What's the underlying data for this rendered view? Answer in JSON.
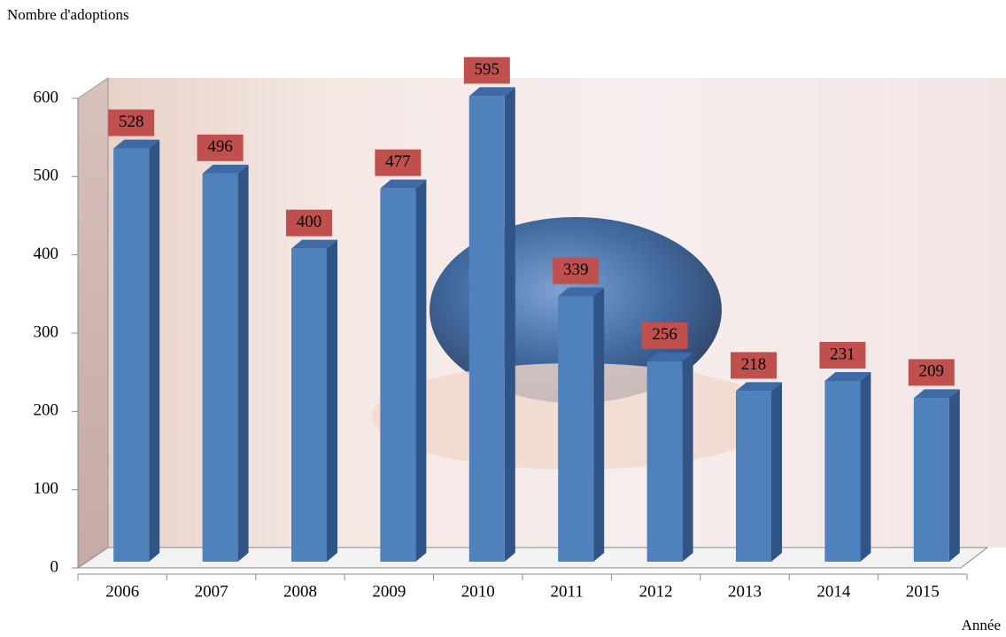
{
  "chart_data": {
    "type": "bar",
    "y_label": "Nombre d'adoptions",
    "x_label": "Année",
    "categories": [
      "2006",
      "2007",
      "2008",
      "2009",
      "2010",
      "2011",
      "2012",
      "2013",
      "2014",
      "2015"
    ],
    "values": [
      528,
      496,
      400,
      477,
      595,
      339,
      256,
      218,
      231,
      209
    ],
    "color": "#4f81bd",
    "label_color": "#c0504d",
    "ylim": [
      0,
      600
    ],
    "yticks": [
      0,
      100,
      200,
      300,
      400,
      500,
      600
    ]
  }
}
